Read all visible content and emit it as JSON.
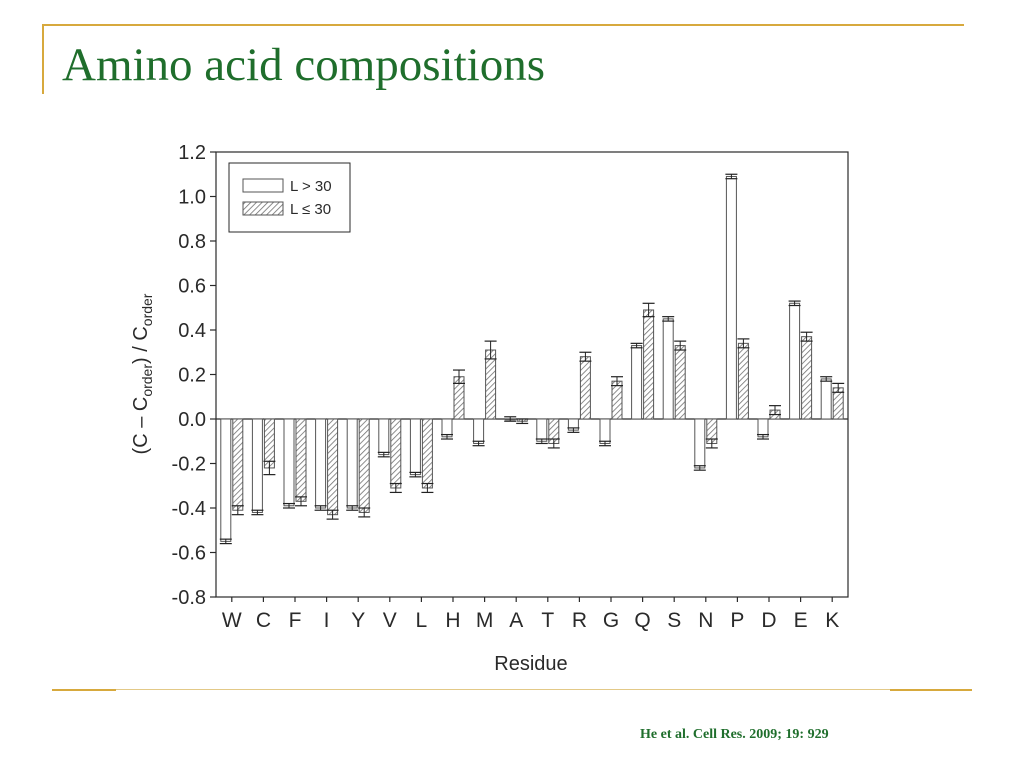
{
  "slide": {
    "title": "Amino acid compositions",
    "citation": "He et al. Cell Res. 2009; 19: 929"
  },
  "chart_data": {
    "type": "bar",
    "xlabel": "Residue",
    "ylabel_parts": [
      "(C – C",
      "order",
      ") / C",
      "order"
    ],
    "ylim": [
      -0.8,
      1.2
    ],
    "yticks": [
      -0.8,
      -0.6,
      -0.4,
      -0.2,
      0.0,
      0.2,
      0.4,
      0.6,
      0.8,
      1.0,
      1.2
    ],
    "ytick_labels": [
      "-0.8",
      "-0.6",
      "-0.4",
      "-0.2",
      "0.0",
      "0.2",
      "0.4",
      "0.6",
      "0.8",
      "1.0",
      "1.2"
    ],
    "categories": [
      "W",
      "C",
      "F",
      "I",
      "Y",
      "V",
      "L",
      "H",
      "M",
      "A",
      "T",
      "R",
      "G",
      "Q",
      "S",
      "N",
      "P",
      "D",
      "E",
      "K"
    ],
    "legend_position": "top-left",
    "grid": false,
    "series": [
      {
        "name": "L > 30",
        "pattern": "open",
        "values": [
          -0.55,
          -0.42,
          -0.39,
          -0.4,
          -0.4,
          -0.16,
          -0.25,
          -0.08,
          -0.11,
          0.0,
          -0.1,
          -0.05,
          -0.11,
          0.33,
          0.45,
          -0.22,
          1.09,
          -0.08,
          0.52,
          0.18
        ],
        "errors": [
          0.01,
          0.01,
          0.01,
          0.01,
          0.01,
          0.01,
          0.01,
          0.01,
          0.01,
          0.01,
          0.01,
          0.01,
          0.01,
          0.01,
          0.01,
          0.01,
          0.01,
          0.01,
          0.01,
          0.01
        ]
      },
      {
        "name": "L ≤ 30",
        "pattern": "hatched",
        "values": [
          -0.41,
          -0.22,
          -0.37,
          -0.43,
          -0.42,
          -0.31,
          -0.31,
          0.19,
          0.31,
          -0.01,
          -0.11,
          0.28,
          0.17,
          0.49,
          0.33,
          -0.11,
          0.34,
          0.04,
          0.37,
          0.14
        ],
        "errors": [
          0.02,
          0.03,
          0.02,
          0.02,
          0.02,
          0.02,
          0.02,
          0.03,
          0.04,
          0.01,
          0.02,
          0.02,
          0.02,
          0.03,
          0.02,
          0.02,
          0.02,
          0.02,
          0.02,
          0.02
        ]
      }
    ]
  }
}
